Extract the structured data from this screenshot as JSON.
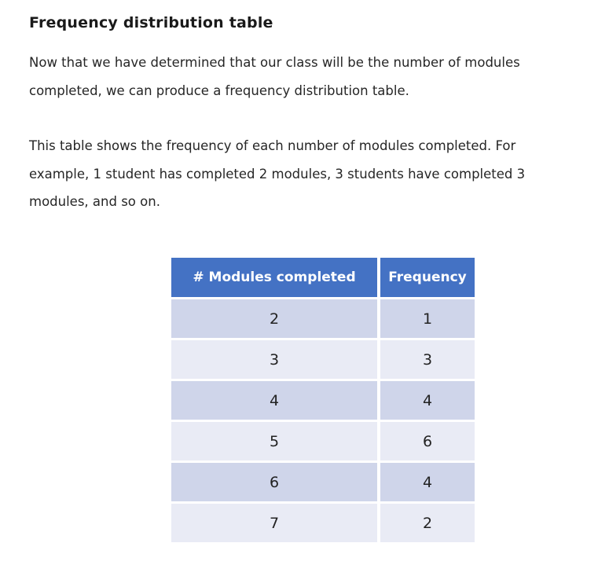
{
  "heading": "Frequency distribution table",
  "paragraphs": [
    "Now that we have determined that our class will be the number of modules completed, we can produce a frequency distribution table.",
    "This table shows the frequency of each number of modules completed. For example, 1 student has completed 2 modules, 3 students have completed 3 modules, and so on."
  ],
  "table": {
    "headers": [
      "# Modules completed",
      "Frequency"
    ],
    "rows": [
      [
        "2",
        "1"
      ],
      [
        "3",
        "3"
      ],
      [
        "4",
        "4"
      ],
      [
        "5",
        "6"
      ],
      [
        "6",
        "4"
      ],
      [
        "7",
        "2"
      ]
    ]
  },
  "colors": {
    "header_bg": "#4472c4",
    "row_dark": "#cfd5ea",
    "row_light": "#e9ebf5"
  }
}
